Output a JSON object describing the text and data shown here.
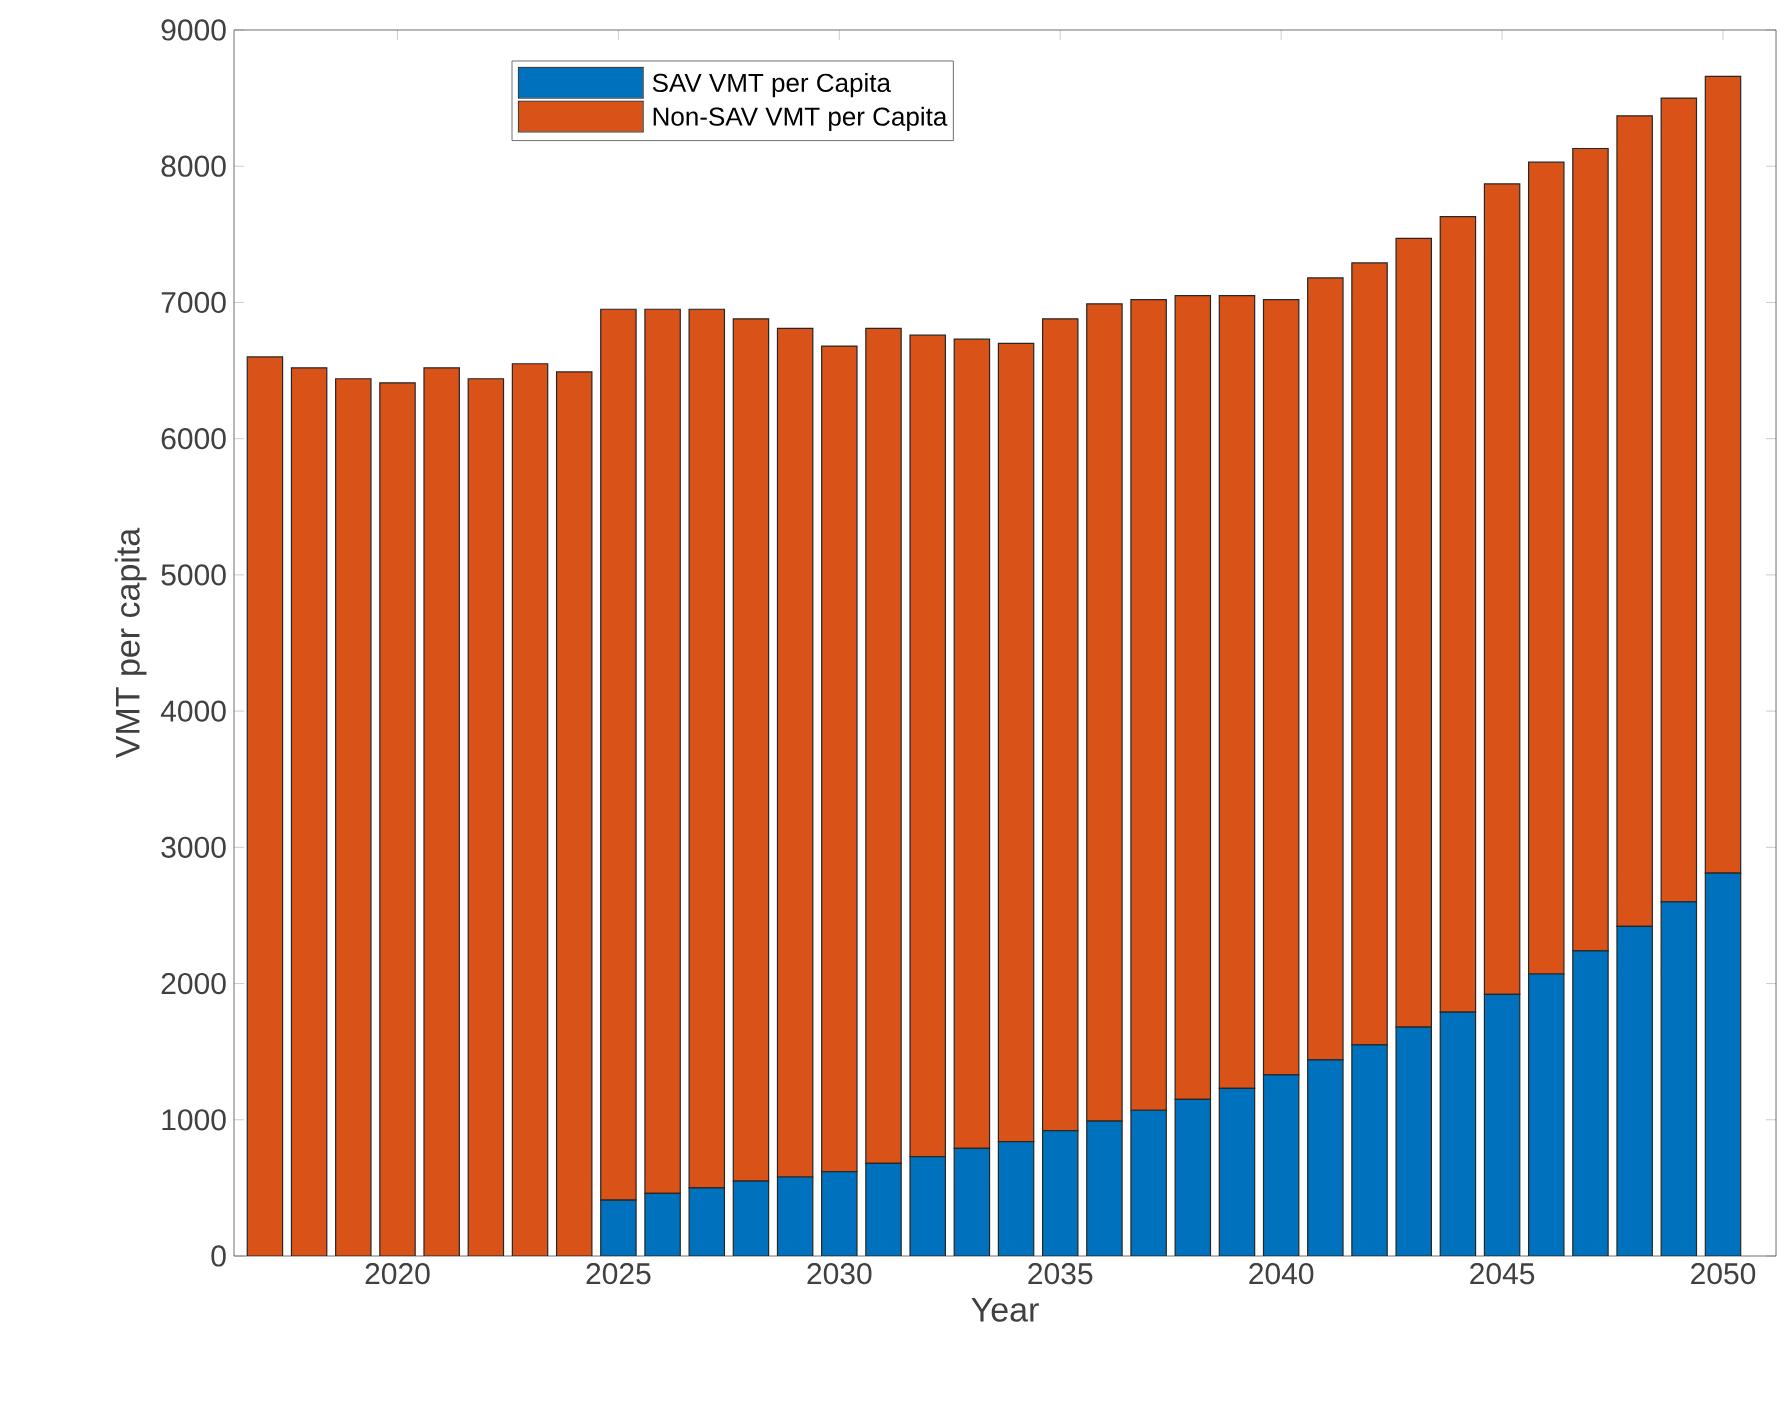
{
  "chart_data": {
    "type": "bar",
    "stacked": true,
    "xlabel": "Year",
    "ylabel": "VMT per capita",
    "x": [
      2017,
      2018,
      2019,
      2020,
      2021,
      2022,
      2023,
      2024,
      2025,
      2026,
      2027,
      2028,
      2029,
      2030,
      2031,
      2032,
      2033,
      2034,
      2035,
      2036,
      2037,
      2038,
      2039,
      2040,
      2041,
      2042,
      2043,
      2044,
      2045,
      2046,
      2047,
      2048,
      2049,
      2050
    ],
    "series": [
      {
        "name": "SAV VMT per Capita",
        "color": "#0072bd",
        "values": [
          0,
          0,
          0,
          0,
          0,
          0,
          0,
          0,
          410,
          460,
          500,
          550,
          580,
          620,
          680,
          730,
          790,
          840,
          920,
          990,
          1070,
          1150,
          1230,
          1330,
          1440,
          1550,
          1680,
          1790,
          1920,
          2070,
          2240,
          2420,
          2600,
          2810
        ]
      },
      {
        "name": "Non-SAV VMT per Capita",
        "color": "#d95319",
        "values": [
          6600,
          6520,
          6440,
          6410,
          6520,
          6440,
          6550,
          6490,
          6540,
          6490,
          6450,
          6330,
          6230,
          6060,
          6130,
          6030,
          5940,
          5860,
          5960,
          6000,
          5950,
          5900,
          5820,
          5690,
          5740,
          5740,
          5790,
          5840,
          5950,
          5960,
          5890,
          5950,
          5900,
          5850
        ]
      }
    ],
    "xlim": [
      2016.3,
      2051.2
    ],
    "xticks": [
      2020,
      2025,
      2030,
      2035,
      2040,
      2045,
      2050
    ],
    "ylim": [
      0,
      9000
    ],
    "yticks": [
      0,
      1000,
      2000,
      3000,
      4000,
      5000,
      6000,
      7000,
      8000,
      9000
    ],
    "grid": false,
    "legend": "top"
  }
}
